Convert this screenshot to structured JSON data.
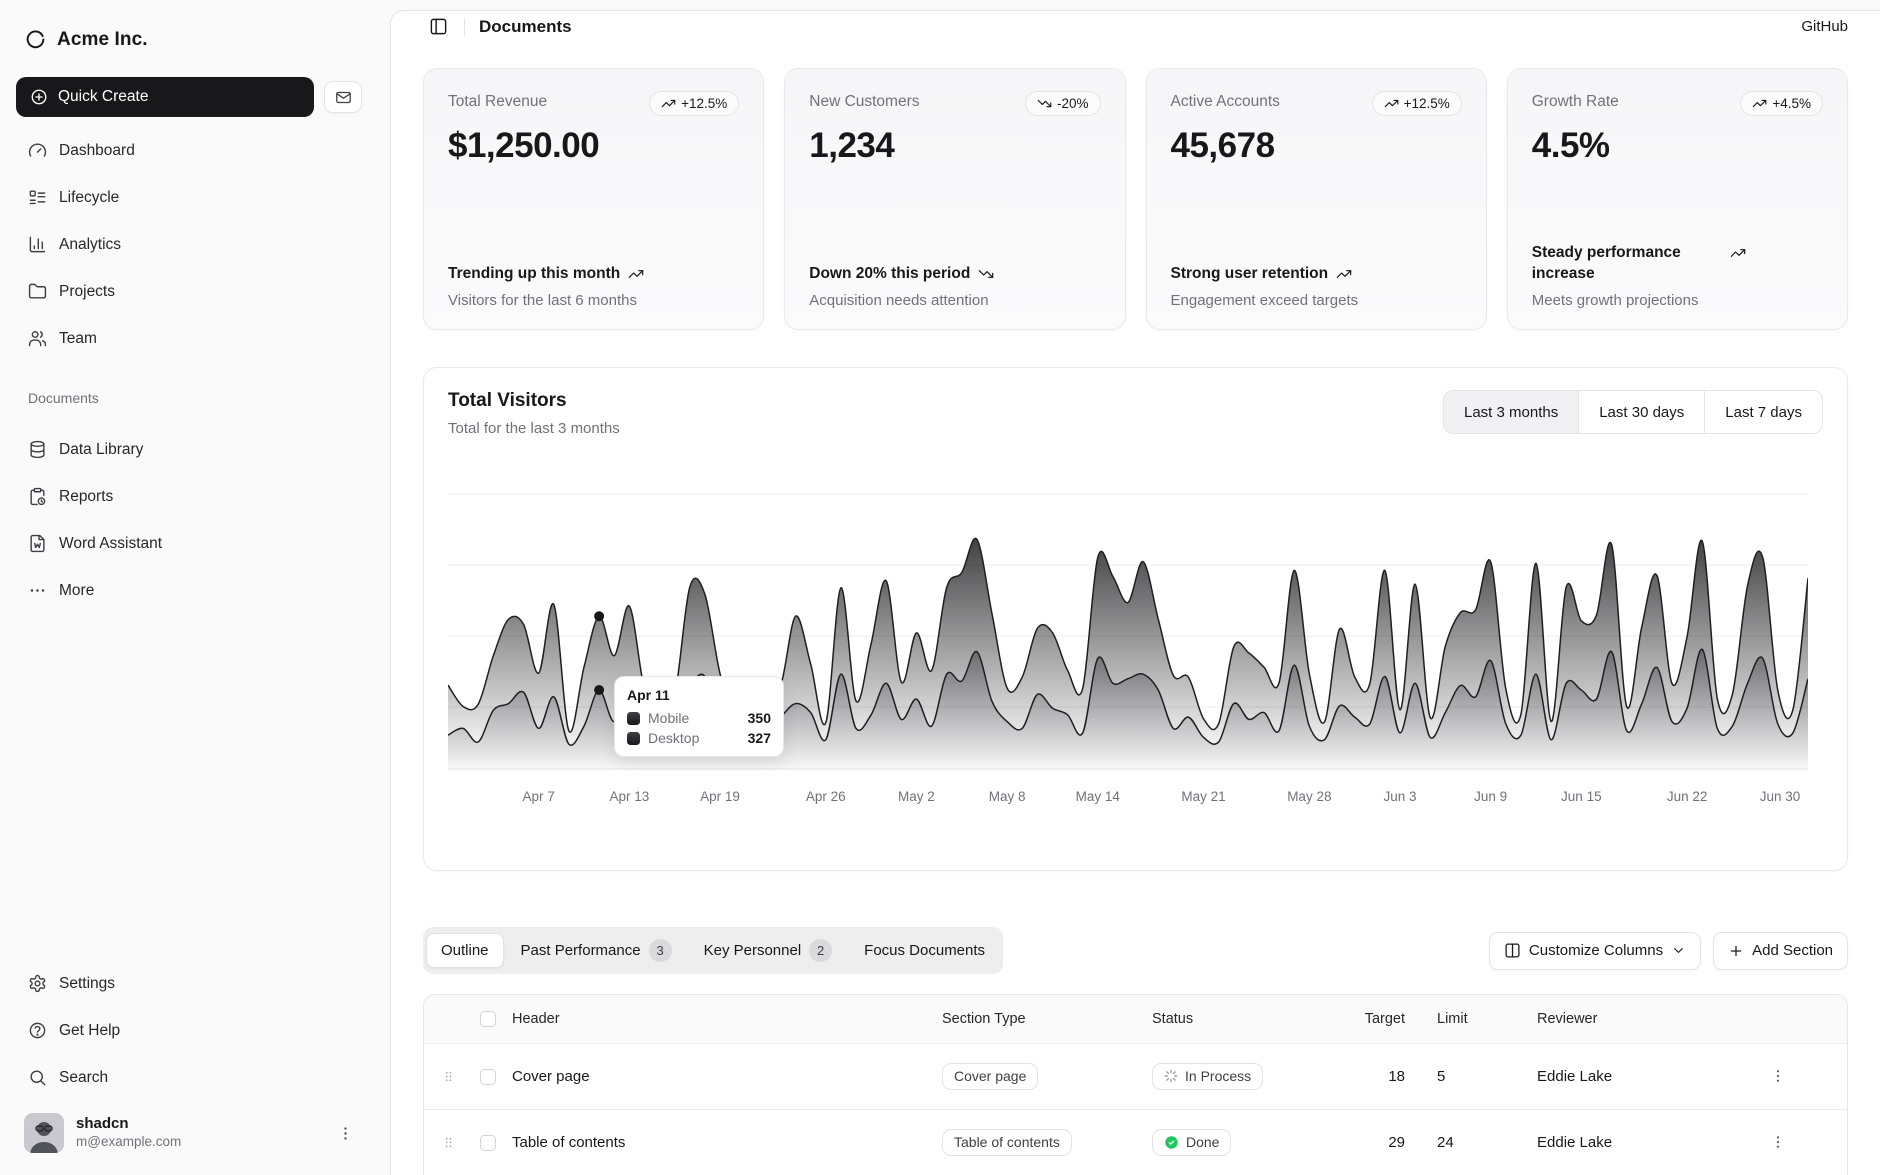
{
  "brand": {
    "name": "Acme Inc."
  },
  "sidebar": {
    "quick_create_label": "Quick Create",
    "nav": [
      {
        "label": "Dashboard",
        "icon": "gauge-icon"
      },
      {
        "label": "Lifecycle",
        "icon": "list-icon"
      },
      {
        "label": "Analytics",
        "icon": "chart-bar-icon"
      },
      {
        "label": "Projects",
        "icon": "folder-icon"
      },
      {
        "label": "Team",
        "icon": "users-icon"
      }
    ],
    "section_label": "Documents",
    "doc_nav": [
      {
        "label": "Data Library",
        "icon": "database-icon"
      },
      {
        "label": "Reports",
        "icon": "clipboard-icon"
      },
      {
        "label": "Word Assistant",
        "icon": "file-word-icon"
      },
      {
        "label": "More",
        "icon": "ellipsis-icon"
      }
    ],
    "footer_nav": [
      {
        "label": "Settings",
        "icon": "gear-icon"
      },
      {
        "label": "Get Help",
        "icon": "help-icon"
      },
      {
        "label": "Search",
        "icon": "search-icon"
      }
    ],
    "user": {
      "name": "shadcn",
      "email": "m@example.com"
    }
  },
  "header": {
    "title": "Documents",
    "github_label": "GitHub"
  },
  "stat_cards": [
    {
      "label": "Total Revenue",
      "value": "$1,250.00",
      "badge": "+12.5%",
      "trend": "up",
      "line1": "Trending up this month",
      "line2": "Visitors for the last 6 months"
    },
    {
      "label": "New Customers",
      "value": "1,234",
      "badge": "-20%",
      "trend": "down",
      "line1": "Down 20% this period",
      "line2": "Acquisition needs attention"
    },
    {
      "label": "Active Accounts",
      "value": "45,678",
      "badge": "+12.5%",
      "trend": "up",
      "line1": "Strong user retention",
      "line2": "Engagement exceed targets"
    },
    {
      "label": "Growth Rate",
      "value": "4.5%",
      "badge": "+4.5%",
      "trend": "up",
      "line1": "Steady performance increase",
      "line2": "Meets growth projections"
    }
  ],
  "chart_card": {
    "title": "Total Visitors",
    "subtitle": "Total for the last 3 months",
    "ranges": [
      "Last 3 months",
      "Last 30 days",
      "Last 7 days"
    ],
    "active_range": "Last 3 months"
  },
  "chart_data": {
    "type": "area",
    "stacked": true,
    "title": "Total Visitors",
    "x_start": "Apr 1",
    "x_end": "Jun 30",
    "x_tick_labels": [
      "Apr 7",
      "Apr 13",
      "Apr 19",
      "Apr 26",
      "May 2",
      "May 8",
      "May 14",
      "May 21",
      "May 28",
      "Jun 3",
      "Jun 9",
      "Jun 15",
      "Jun 22",
      "Jun 30"
    ],
    "x_tick_indices": [
      6,
      12,
      18,
      25,
      31,
      37,
      43,
      50,
      57,
      63,
      69,
      75,
      82,
      90
    ],
    "ylim": [
      0,
      1365
    ],
    "grid": true,
    "legend_position": "tooltip-only",
    "series": [
      {
        "name": "Mobile",
        "color": "#3f3f46",
        "values": [
          150,
          180,
          120,
          260,
          290,
          340,
          180,
          320,
          110,
          190,
          350,
          210,
          380,
          220,
          170,
          190,
          360,
          410,
          180,
          150,
          200,
          170,
          230,
          290,
          250,
          130,
          420,
          180,
          240,
          380,
          220,
          310,
          190,
          420,
          390,
          520,
          300,
          210,
          180,
          330,
          270,
          240,
          160,
          490,
          380,
          400,
          420,
          350,
          180,
          230,
          140,
          120,
          290,
          220,
          250,
          170,
          460,
          190,
          130,
          280,
          230,
          200,
          410,
          160,
          380,
          140,
          250,
          370,
          320,
          480,
          200,
          150,
          420,
          130,
          380,
          350,
          310,
          520,
          170,
          290,
          450,
          210,
          270,
          530,
          180,
          190,
          380,
          490,
          200,
          160,
          400
        ]
      },
      {
        "name": "Desktop",
        "color": "#18181b",
        "values": [
          222,
          97,
          167,
          242,
          373,
          301,
          245,
          409,
          59,
          261,
          327,
          292,
          342,
          137,
          120,
          138,
          446,
          364,
          243,
          89,
          137,
          224,
          138,
          387,
          215,
          75,
          383,
          122,
          315,
          454,
          165,
          293,
          247,
          385,
          481,
          498,
          388,
          149,
          227,
          293,
          335,
          197,
          197,
          448,
          473,
          338,
          499,
          315,
          235,
          177,
          82,
          81,
          252,
          294,
          201,
          213,
          420,
          233,
          78,
          340,
          178,
          178,
          470,
          103,
          439,
          88,
          294,
          323,
          385,
          438,
          155,
          92,
          492,
          81,
          426,
          307,
          371,
          475,
          107,
          341,
          408,
          169,
          317,
          480,
          132,
          141,
          434,
          448,
          149,
          103,
          446
        ]
      }
    ],
    "tooltip": {
      "title": "Apr 11",
      "point_index": 10,
      "rows": [
        {
          "label": "Mobile",
          "value": "350"
        },
        {
          "label": "Desktop",
          "value": "327"
        }
      ]
    }
  },
  "tabs": {
    "items": [
      {
        "label": "Outline",
        "active": true
      },
      {
        "label": "Past Performance",
        "badge": "3"
      },
      {
        "label": "Key Personnel",
        "badge": "2"
      },
      {
        "label": "Focus Documents"
      }
    ],
    "customize_label": "Customize Columns",
    "add_label": "Add Section"
  },
  "table": {
    "columns": [
      "Header",
      "Section Type",
      "Status",
      "Target",
      "Limit",
      "Reviewer"
    ],
    "rows": [
      {
        "header": "Cover page",
        "type": "Cover page",
        "status": "In Process",
        "status_kind": "process",
        "target": "18",
        "limit": "5",
        "reviewer": "Eddie Lake"
      },
      {
        "header": "Table of contents",
        "type": "Table of contents",
        "status": "Done",
        "status_kind": "done",
        "target": "29",
        "limit": "24",
        "reviewer": "Eddie Lake"
      }
    ]
  }
}
